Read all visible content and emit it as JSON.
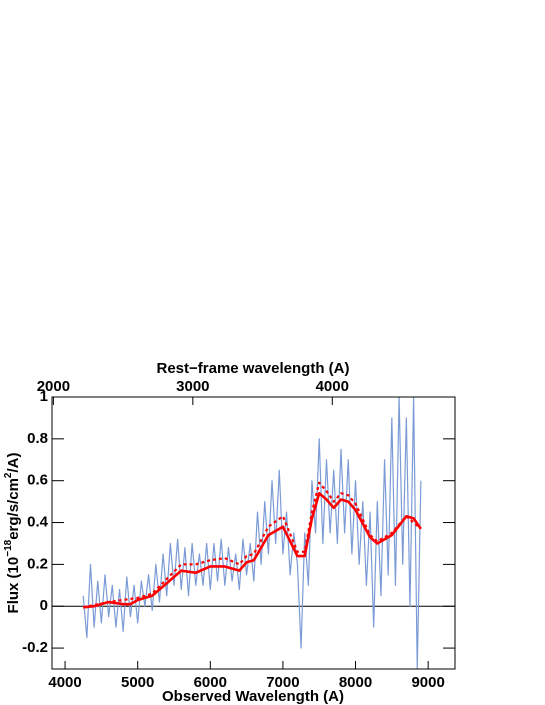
{
  "chart_data": {
    "type": "line",
    "x_label": "Observed Wavelength (A)",
    "x2_label": "Rest−frame wavelength (A)",
    "y_label": [
      "Flux (10",
      "−18",
      "erg/s/cm",
      "2",
      "/A)"
    ],
    "xlim": [
      3820,
      9370
    ],
    "xticks": [
      4000,
      5000,
      6000,
      7000,
      8000,
      9000
    ],
    "x2lim": [
      1990,
      4880
    ],
    "x2ticks": [
      2000,
      3000,
      4000
    ],
    "ylim": [
      -0.3,
      1
    ],
    "yticks": [
      -0.2,
      0,
      0.2,
      0.4,
      0.6,
      0.8,
      1
    ],
    "series": [
      {
        "color": "#7b9bd6",
        "style": "solid",
        "width": 1.2,
        "x": [
          4250,
          4300,
          4350,
          4400,
          4450,
          4500,
          4550,
          4600,
          4650,
          4700,
          4750,
          4800,
          4850,
          4900,
          4950,
          5000,
          5050,
          5100,
          5150,
          5200,
          5250,
          5300,
          5350,
          5400,
          5450,
          5500,
          5550,
          5600,
          5650,
          5700,
          5750,
          5800,
          5850,
          5900,
          5950,
          6000,
          6050,
          6100,
          6150,
          6200,
          6250,
          6300,
          6350,
          6400,
          6450,
          6500,
          6550,
          6600,
          6650,
          6700,
          6750,
          6800,
          6850,
          6900,
          6950,
          7000,
          7050,
          7100,
          7150,
          7200,
          7250,
          7300,
          7350,
          7400,
          7450,
          7500,
          7550,
          7600,
          7650,
          7700,
          7750,
          7800,
          7850,
          7900,
          7950,
          8000,
          8050,
          8100,
          8150,
          8200,
          8250,
          8300,
          8350,
          8400,
          8450,
          8500,
          8550,
          8600,
          8650,
          8700,
          8750,
          8800,
          8850,
          8900
        ],
        "values": [
          0.05,
          -0.15,
          0.2,
          -0.1,
          0.12,
          -0.08,
          0.15,
          -0.05,
          0.1,
          -0.1,
          0.08,
          -0.12,
          0.14,
          -0.05,
          0.1,
          -0.08,
          0.12,
          0.0,
          0.15,
          -0.02,
          0.2,
          0.02,
          0.25,
          0.05,
          0.3,
          0.1,
          0.32,
          0.08,
          0.28,
          0.05,
          0.3,
          0.1,
          0.25,
          0.1,
          0.3,
          0.08,
          0.3,
          0.12,
          0.32,
          0.1,
          0.28,
          0.12,
          0.25,
          0.08,
          0.32,
          0.15,
          0.3,
          0.12,
          0.45,
          0.2,
          0.5,
          0.25,
          0.6,
          0.3,
          0.65,
          0.25,
          0.45,
          0.15,
          0.35,
          0.2,
          -0.2,
          0.35,
          0.1,
          0.6,
          0.35,
          0.8,
          0.3,
          0.7,
          0.35,
          0.65,
          0.3,
          0.75,
          0.35,
          0.7,
          0.25,
          0.6,
          0.2,
          0.5,
          0.1,
          0.45,
          -0.1,
          0.5,
          0.05,
          0.7,
          0.15,
          0.9,
          0.1,
          1.0,
          0.2,
          0.9,
          0.0,
          1.0,
          -0.3,
          0.6
        ]
      },
      {
        "color": "#ff0000",
        "style": "dotted",
        "width": 2.2,
        "x": [
          4250,
          4600,
          5000,
          5200,
          5400,
          5600,
          5800,
          6000,
          6200,
          6400,
          6500,
          6600,
          6800,
          7000,
          7200,
          7300,
          7400,
          7500,
          7600,
          7700,
          7800,
          7900,
          8000,
          8200,
          8300,
          8500,
          8700,
          8900
        ],
        "values": [
          -0.005,
          0.02,
          0.04,
          0.06,
          0.13,
          0.2,
          0.2,
          0.22,
          0.23,
          0.2,
          0.24,
          0.25,
          0.38,
          0.43,
          0.26,
          0.26,
          0.45,
          0.59,
          0.55,
          0.5,
          0.54,
          0.53,
          0.49,
          0.34,
          0.31,
          0.35,
          0.43,
          0.37
        ]
      },
      {
        "color": "#ff0000",
        "style": "solid",
        "width": 2.6,
        "x": [
          4250,
          4400,
          4600,
          4800,
          4900,
          5000,
          5200,
          5400,
          5600,
          5800,
          6000,
          6200,
          6400,
          6500,
          6600,
          6800,
          7000,
          7200,
          7300,
          7400,
          7500,
          7600,
          7700,
          7800,
          7900,
          8000,
          8200,
          8300,
          8500,
          8700,
          8800,
          8900
        ],
        "values": [
          -0.005,
          0,
          0.02,
          0.01,
          0.01,
          0.03,
          0.05,
          0.11,
          0.17,
          0.16,
          0.19,
          0.19,
          0.17,
          0.21,
          0.22,
          0.34,
          0.38,
          0.24,
          0.24,
          0.42,
          0.54,
          0.51,
          0.47,
          0.51,
          0.5,
          0.46,
          0.33,
          0.3,
          0.34,
          0.43,
          0.42,
          0.37
        ]
      }
    ]
  }
}
